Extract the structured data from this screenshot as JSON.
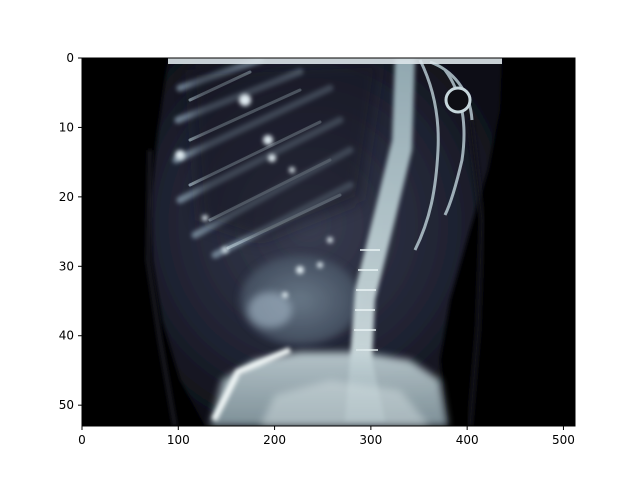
{
  "figure": {
    "description": "Coronal CT slice of torso rendered with bone colormap",
    "x_axis": {
      "range": [
        0,
        512
      ],
      "ticks": [
        0,
        100,
        200,
        300,
        400,
        500
      ]
    },
    "y_axis": {
      "range": [
        0,
        53
      ],
      "inverted": true,
      "ticks": [
        0,
        10,
        20,
        30,
        40,
        50
      ]
    },
    "colormap": "bone",
    "background_color": "#000000"
  }
}
